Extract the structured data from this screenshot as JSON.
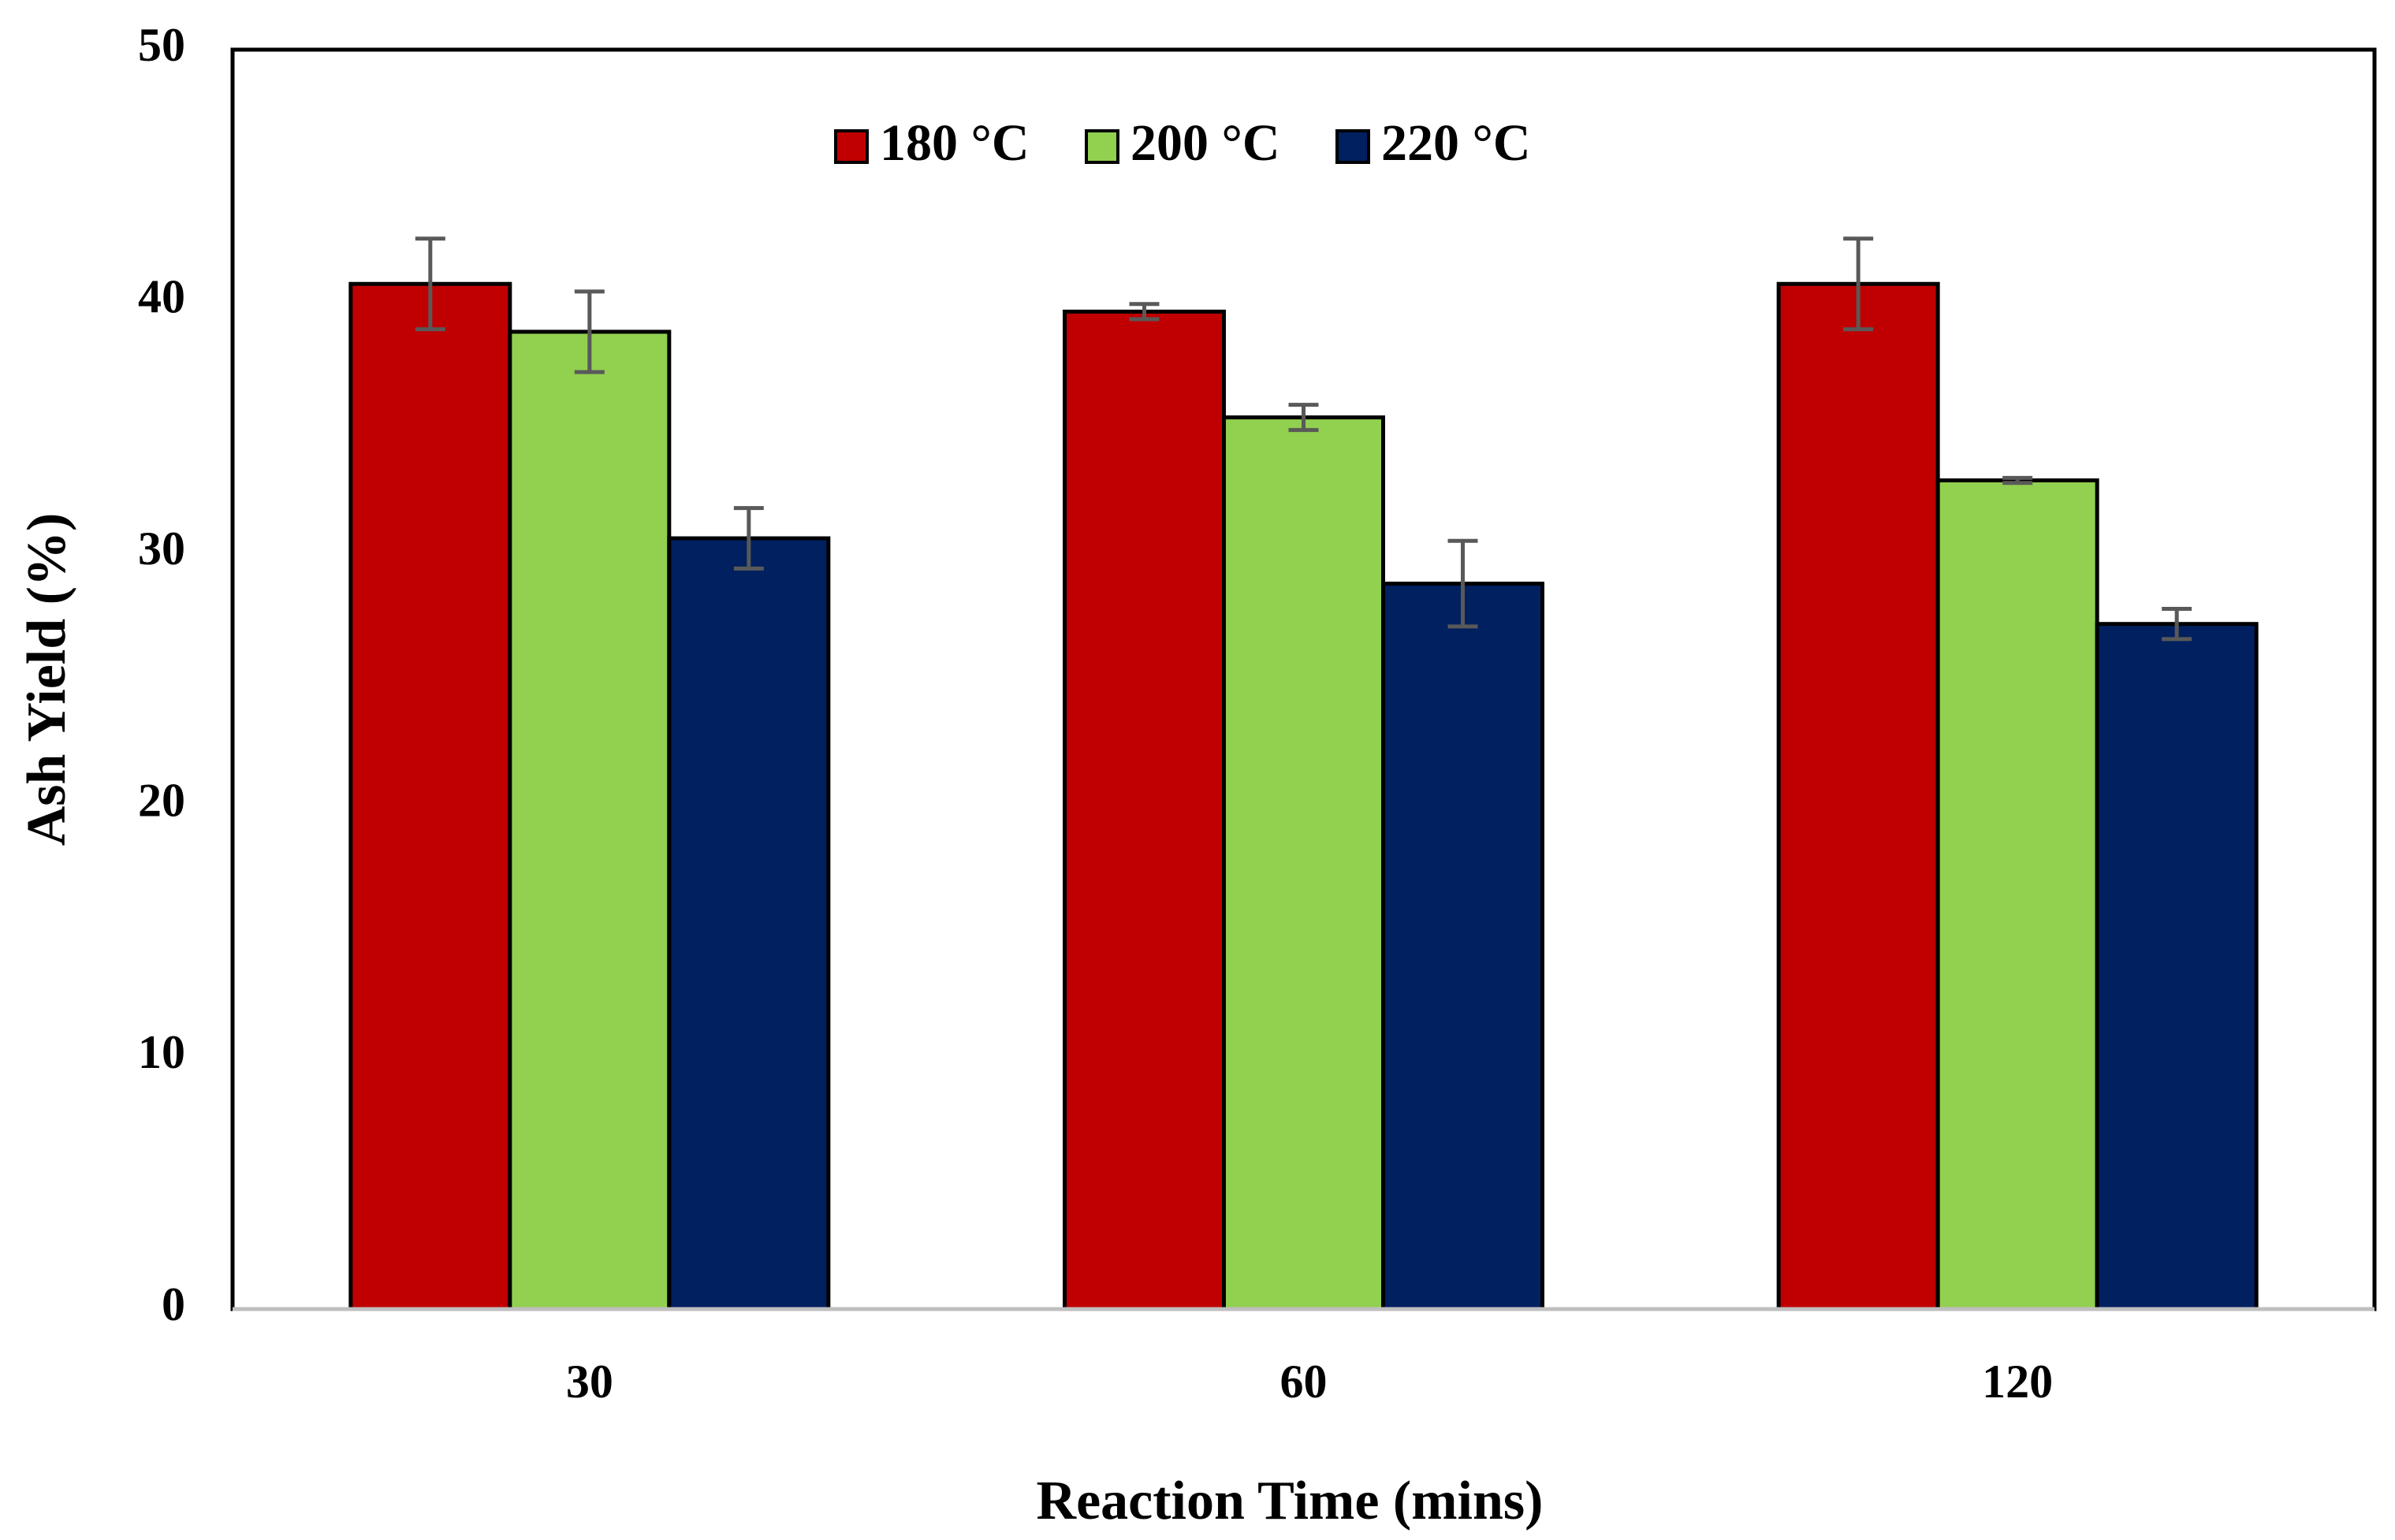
{
  "chart_data": {
    "type": "bar",
    "title": "",
    "xlabel": "Reaction Time (mins)",
    "ylabel": "Ash Yield (%)",
    "ylim": [
      0,
      50
    ],
    "yticks": [
      "0",
      "10",
      "20",
      "30",
      "40",
      "50"
    ],
    "categories": [
      "30",
      "60",
      "120"
    ],
    "legend_position": "top-center",
    "series": [
      {
        "name": "180 °C",
        "color": "#C00000",
        "values": [
          40.7,
          39.6,
          40.7
        ],
        "errors": [
          1.8,
          0.3,
          1.8
        ]
      },
      {
        "name": "200 °C",
        "color": "#92D050",
        "values": [
          38.8,
          35.4,
          32.9
        ],
        "errors": [
          1.6,
          0.5,
          0.1
        ]
      },
      {
        "name": "220 °C",
        "color": "#002060",
        "values": [
          30.6,
          28.8,
          27.2
        ],
        "errors": [
          1.2,
          1.7,
          0.6
        ]
      }
    ],
    "errorbar_color": "#595959"
  }
}
